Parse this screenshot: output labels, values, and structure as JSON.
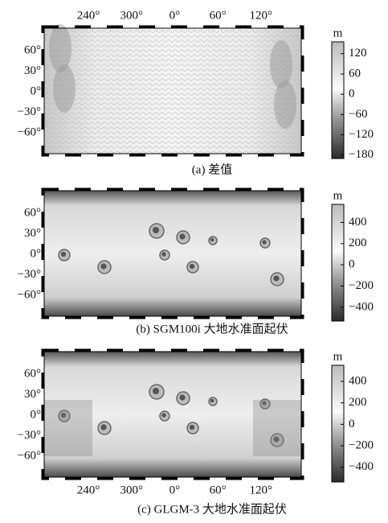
{
  "top_longitude_labels": [
    "240°",
    "300°",
    "0°",
    "60°",
    "120°"
  ],
  "panels": [
    {
      "caption": "(a) 差值",
      "latitude_labels": [
        "60°",
        "30°",
        "0°",
        "−30°",
        "−60°"
      ],
      "colorbar": {
        "unit": "m",
        "lim": [
          -190,
          155
        ],
        "ticks": [
          120,
          60,
          0,
          {
            "value": -60,
            "label": "−60"
          },
          {
            "value": -120,
            "label": "−120"
          },
          {
            "value": -180,
            "label": "−180"
          }
        ]
      }
    },
    {
      "caption": "(b) SGM100i 大地水准面起伏",
      "latitude_labels": [
        "60°",
        "30°",
        "0°",
        "−30°",
        "−60°"
      ],
      "colorbar": {
        "unit": "m",
        "lim": [
          -530,
          570
        ],
        "ticks": [
          400,
          200,
          0,
          {
            "value": -200,
            "label": "−200"
          },
          {
            "value": -400,
            "label": "−400"
          }
        ]
      }
    },
    {
      "caption": "(c) GLGM-3 大地水准面起伏",
      "latitude_labels": [
        "60°",
        "30°",
        "0°",
        "−30°",
        "−60°"
      ],
      "colorbar": {
        "unit": "m",
        "lim": [
          -537,
          550
        ],
        "ticks": [
          400,
          200,
          0,
          {
            "value": -200,
            "label": "−200"
          },
          {
            "value": -400,
            "label": "−400"
          }
        ]
      }
    }
  ],
  "bottom_longitude_labels": [
    "240°",
    "300°",
    "0°",
    "60°",
    "120°"
  ]
}
